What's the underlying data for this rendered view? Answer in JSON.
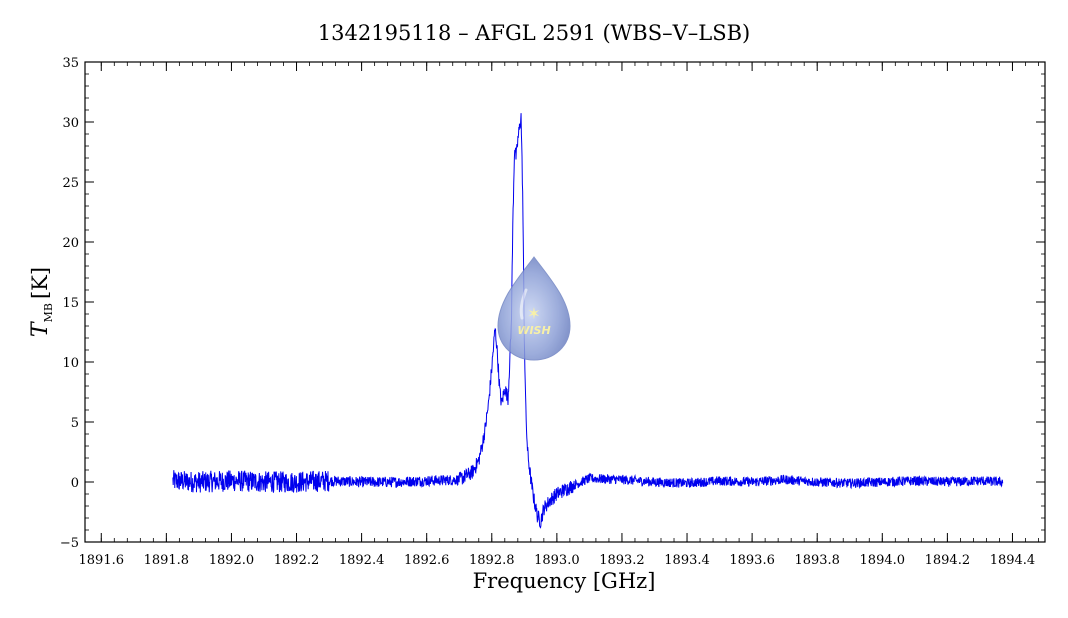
{
  "chart_data": {
    "type": "line",
    "title": "1342195118 – AFGL 2591 (WBS–V–LSB)",
    "xlabel": "Frequency [GHz]",
    "ylabel": {
      "symbol": "T",
      "subscript": "MB",
      "unit": "[K]"
    },
    "xlim": [
      1891.55,
      1894.5
    ],
    "ylim": [
      -5,
      35
    ],
    "xticks": [
      1891.6,
      1891.8,
      1892.0,
      1892.2,
      1892.4,
      1892.6,
      1892.8,
      1893.0,
      1893.2,
      1893.4,
      1893.6,
      1893.8,
      1894.0,
      1894.2,
      1894.4
    ],
    "xtick_labels": [
      "1891.6",
      "1891.8",
      "1892.0",
      "1892.2",
      "1892.4",
      "1892.6",
      "1892.8",
      "1893.0",
      "1893.2",
      "1893.4",
      "1893.6",
      "1893.8",
      "1894.0",
      "1894.2",
      "1894.4"
    ],
    "yticks": [
      -5,
      0,
      5,
      10,
      15,
      20,
      25,
      30,
      35
    ],
    "ytick_labels": [
      "−5",
      "0",
      "5",
      "10",
      "15",
      "20",
      "25",
      "30",
      "35"
    ],
    "line_color": "#0000ee",
    "grid": false,
    "series": [
      {
        "x": [
          1891.82,
          1891.9,
          1892.0,
          1892.1,
          1892.2,
          1892.3,
          1892.4,
          1892.5,
          1892.6,
          1892.7,
          1892.74,
          1892.76,
          1892.77,
          1892.78,
          1892.79,
          1892.8,
          1892.81,
          1892.815,
          1892.82,
          1892.825,
          1892.83,
          1892.84,
          1892.85,
          1892.86,
          1892.865,
          1892.87,
          1892.875,
          1892.88,
          1892.885,
          1892.89,
          1892.895,
          1892.9,
          1892.905,
          1892.91,
          1892.92,
          1892.93,
          1892.94,
          1892.95,
          1892.96,
          1892.98,
          1893.0,
          1893.02,
          1893.05,
          1893.1,
          1893.2,
          1893.3,
          1893.4,
          1893.5,
          1893.6,
          1893.7,
          1893.8,
          1893.9,
          1894.0,
          1894.1,
          1894.2,
          1894.3,
          1894.37
        ],
        "y": [
          0.1,
          0.0,
          0.1,
          0.0,
          0.0,
          0.1,
          0.0,
          0.0,
          0.1,
          0.2,
          0.8,
          1.8,
          3.0,
          4.5,
          6.5,
          9.5,
          12.8,
          11.5,
          9.5,
          7.5,
          6.5,
          7.8,
          7.0,
          13.0,
          22.0,
          28.0,
          27.0,
          28.5,
          29.5,
          30.5,
          24.0,
          12.0,
          5.5,
          2.5,
          0.2,
          -1.5,
          -2.8,
          -3.3,
          -2.2,
          -1.5,
          -1.0,
          -0.7,
          -0.3,
          0.3,
          0.2,
          0.0,
          -0.1,
          0.1,
          0.0,
          0.2,
          0.0,
          -0.1,
          0.0,
          0.1,
          0.0,
          0.1,
          0.0
        ]
      }
    ]
  },
  "logo": {
    "text": "WISH",
    "star_color": "#f6ee9a",
    "drop_color": "#7f93cf"
  }
}
